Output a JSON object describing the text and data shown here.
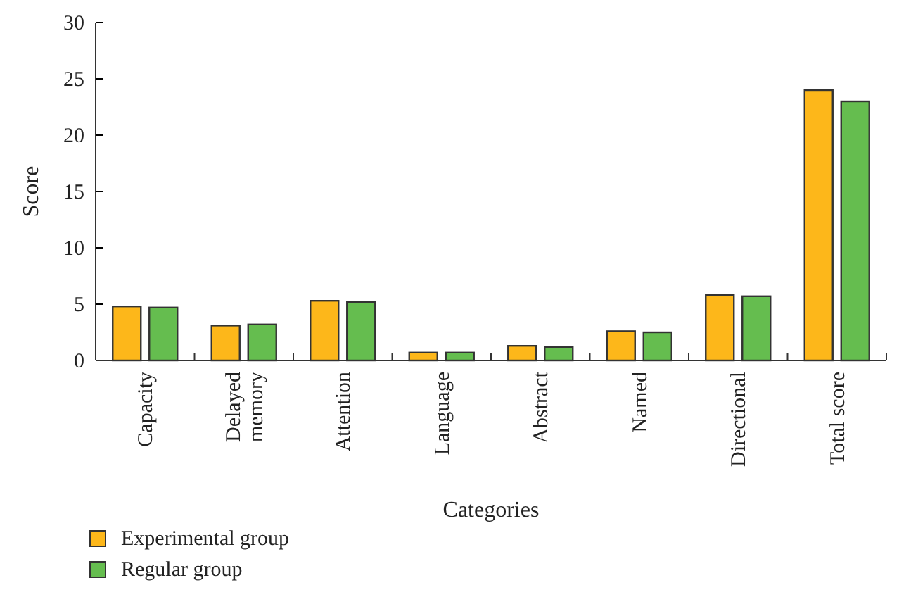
{
  "chart_data": {
    "type": "bar",
    "xlabel": "Categories",
    "ylabel": "Score",
    "categories": [
      "Capacity",
      "Delayed memory",
      "Attention",
      "Language",
      "Abstract",
      "Named",
      "Directional",
      "Total score"
    ],
    "series": [
      {
        "name": "Experimental group",
        "color": "#fdb71a",
        "values": [
          4.8,
          3.1,
          5.3,
          0.7,
          1.3,
          2.6,
          5.8,
          24
        ]
      },
      {
        "name": "Regular group",
        "color": "#65bd4f",
        "values": [
          4.7,
          3.2,
          5.2,
          0.7,
          1.2,
          2.5,
          5.7,
          23
        ]
      }
    ],
    "ylim": [
      0,
      30
    ],
    "yticks": [
      0,
      5,
      10,
      15,
      20,
      25,
      30
    ],
    "grid": false,
    "legend": "bottom left"
  }
}
